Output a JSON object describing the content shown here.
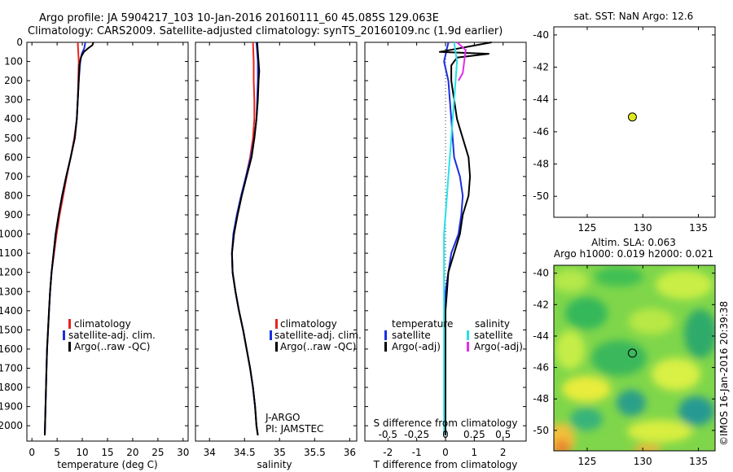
{
  "header": {
    "line1": "Argo profile: JA 5904217_103 10-Jan-2016 20160111_60 45.085S 129.063E",
    "line2": "Climatology: CARS2009. Satellite-adjusted climatology: synTS_20160109.nc (1.9d earlier)"
  },
  "credit": "©IMOS 16-Jan-2016 20:39:38",
  "colors": {
    "climatology": "#e8231e",
    "satellite": "#1a2fe0",
    "argo": "#000000",
    "sal_satellite": "#27e0e8",
    "sal_argo": "#e32ee8",
    "marker": "#e0e81e"
  },
  "chart_data": [
    {
      "id": "temperature",
      "type": "line",
      "xlabel": "temperature (deg C)",
      "ylabel": "",
      "xlim": [
        -1,
        31
      ],
      "ylim": [
        2080,
        0
      ],
      "xticks": [
        0,
        5,
        10,
        15,
        20,
        25,
        30
      ],
      "yticks": [
        0,
        100,
        200,
        300,
        400,
        500,
        600,
        700,
        800,
        900,
        1000,
        1100,
        1200,
        1300,
        1400,
        1500,
        1600,
        1700,
        1800,
        1900,
        2000
      ],
      "legend": [
        "climatology",
        "satellite-adj. clim.",
        "Argo(..raw -QC)"
      ],
      "series": [
        {
          "name": "climatology",
          "color": "#e8231e",
          "x": [
            9.1,
            9.2,
            9.3,
            9.2,
            9.1,
            8.9,
            8.4,
            7.7,
            6.9,
            6.2,
            5.5,
            4.9,
            4.4,
            3.9,
            3.6,
            3.4,
            3.2,
            3.0,
            2.9,
            2.8,
            2.7,
            2.6,
            2.55
          ],
          "y": [
            0,
            50,
            100,
            200,
            300,
            400,
            500,
            600,
            700,
            800,
            900,
            1000,
            1100,
            1200,
            1300,
            1400,
            1500,
            1600,
            1700,
            1800,
            1900,
            2000,
            2050
          ]
        },
        {
          "name": "satellite-adj. clim.",
          "color": "#1a2fe0",
          "x": [
            10.6,
            10.4,
            9.9,
            9.6,
            9.3,
            9.1,
            8.9,
            8.5,
            7.7,
            6.8,
            6.0,
            5.3,
            4.7,
            4.3,
            3.9,
            3.6,
            3.4,
            3.2,
            3.0,
            2.9,
            2.8,
            2.7,
            2.6,
            2.55
          ],
          "y": [
            0,
            30,
            60,
            100,
            200,
            300,
            400,
            500,
            600,
            700,
            800,
            900,
            1000,
            1100,
            1200,
            1300,
            1400,
            1500,
            1600,
            1700,
            1800,
            1900,
            2000,
            2050
          ]
        },
        {
          "name": "Argo(..raw -QC)",
          "color": "#000000",
          "x": [
            12.2,
            12.0,
            11.2,
            10.3,
            9.7,
            9.4,
            9.3,
            9.1,
            8.9,
            8.5,
            7.7,
            6.8,
            6.0,
            5.3,
            4.7,
            4.3,
            3.9,
            3.6,
            3.4,
            3.2,
            3.0,
            2.9,
            2.8,
            2.7,
            2.6,
            2.55
          ],
          "y": [
            0,
            15,
            30,
            50,
            80,
            120,
            200,
            300,
            400,
            500,
            600,
            700,
            800,
            900,
            1000,
            1100,
            1200,
            1300,
            1400,
            1500,
            1600,
            1700,
            1800,
            1900,
            2000,
            2050
          ]
        }
      ]
    },
    {
      "id": "salinity",
      "type": "line",
      "xlabel": "salinity",
      "ylabel": "",
      "xlim": [
        33.8,
        36.1
      ],
      "ylim": [
        2080,
        0
      ],
      "xticks": [
        34,
        34.5,
        35,
        35.5,
        36
      ],
      "legend": [
        "climatology",
        "satellite-adj. clim.",
        "Argo(..raw -QC)"
      ],
      "annotation": [
        "J-ARGO",
        "PI: JAMSTEC"
      ],
      "series": [
        {
          "name": "climatology",
          "color": "#e8231e",
          "x": [
            34.62,
            34.63,
            34.63,
            34.64,
            34.64,
            34.62,
            34.58,
            34.52,
            34.46,
            34.4,
            34.35,
            34.32,
            34.33,
            34.37,
            34.42,
            34.48,
            34.53,
            34.58,
            34.62,
            34.65,
            34.67,
            34.69
          ],
          "y": [
            0,
            100,
            200,
            300,
            400,
            500,
            600,
            700,
            800,
            900,
            1000,
            1100,
            1200,
            1300,
            1400,
            1500,
            1600,
            1700,
            1800,
            1900,
            2000,
            2050
          ]
        },
        {
          "name": "satellite-adj. clim.",
          "color": "#1a2fe0",
          "x": [
            34.67,
            34.68,
            34.69,
            34.69,
            34.68,
            34.67,
            34.64,
            34.59,
            34.52,
            34.45,
            34.39,
            34.34,
            34.32,
            34.33,
            34.37,
            34.42,
            34.48,
            34.53,
            34.58,
            34.62,
            34.65,
            34.67,
            34.69
          ],
          "y": [
            0,
            50,
            100,
            200,
            300,
            400,
            500,
            600,
            700,
            800,
            900,
            1000,
            1100,
            1200,
            1300,
            1400,
            1500,
            1600,
            1700,
            1800,
            1900,
            2000,
            2050
          ]
        },
        {
          "name": "Argo(..raw -QC)",
          "color": "#000000",
          "x": [
            34.68,
            34.69,
            34.71,
            34.7,
            34.69,
            34.67,
            34.64,
            34.6,
            34.53,
            34.46,
            34.4,
            34.35,
            34.32,
            34.33,
            34.37,
            34.42,
            34.48,
            34.53,
            34.58,
            34.62,
            34.65,
            34.67,
            34.69
          ],
          "y": [
            0,
            50,
            150,
            200,
            300,
            400,
            500,
            600,
            700,
            800,
            900,
            1000,
            1100,
            1200,
            1300,
            1400,
            1500,
            1600,
            1700,
            1800,
            1900,
            2000,
            2050
          ]
        }
      ]
    },
    {
      "id": "difference",
      "type": "line",
      "xlabel": "T difference from climatology",
      "xlabel_top": "S difference from climatology",
      "xlim": [
        -2.8,
        2.8
      ],
      "ylim": [
        2080,
        0
      ],
      "xticks": [
        -2,
        -1,
        0,
        1,
        2
      ],
      "xticklabels": [
        "-2",
        "-1",
        "0",
        "1",
        "2"
      ],
      "sticks": [
        -2,
        -1,
        0,
        1,
        2
      ],
      "sticklabels": [
        "-0.5",
        "-0.25",
        "0",
        "0.25",
        "0.5"
      ],
      "legend_t": [
        "temperature",
        "satellite",
        "Argo(-adj)"
      ],
      "legend_s": [
        "salinity",
        "satellite",
        "Argo(-adj)"
      ],
      "series": [
        {
          "name": "T satellite",
          "color": "#1a2fe0",
          "x": [
            0.1,
            -0.05,
            0.1,
            0.15,
            0.2,
            0.25,
            0.3,
            0.5,
            0.6,
            0.55,
            0.45,
            0.2,
            0.1,
            0.0,
            0.0,
            0.0,
            0.0,
            0.0,
            0.0,
            0.0,
            0.0
          ],
          "y": [
            0,
            100,
            200,
            300,
            400,
            500,
            600,
            700,
            800,
            900,
            1000,
            1100,
            1200,
            1300,
            1400,
            1500,
            1600,
            1700,
            1800,
            1900,
            2050
          ]
        },
        {
          "name": "T Argo(-adj)",
          "color": "#000000",
          "x": [
            1.6,
            -0.2,
            1.5,
            0.4,
            0.2,
            0.2,
            0.3,
            0.4,
            0.6,
            0.8,
            0.85,
            0.8,
            0.6,
            0.5,
            0.3,
            0.1,
            0.05,
            0.0,
            0.0,
            0.0,
            0.0
          ],
          "y": [
            0,
            50,
            60,
            80,
            120,
            200,
            300,
            400,
            500,
            600,
            700,
            800,
            900,
            1000,
            1100,
            1200,
            1300,
            1400,
            1600,
            1900,
            2050
          ]
        },
        {
          "name": "S satellite",
          "color": "#27e0e8",
          "x": [
            0.3,
            0.4,
            0.35,
            0.3,
            0.25,
            0.2,
            0.15,
            0.1,
            0.05,
            0.0,
            -0.05,
            -0.05,
            -0.05,
            -0.05,
            -0.05
          ],
          "y": [
            0,
            100,
            200,
            300,
            400,
            500,
            600,
            700,
            800,
            900,
            1000,
            1200,
            1500,
            1800,
            2050
          ]
        },
        {
          "name": "S Argo(-adj)",
          "color": "#e32ee8",
          "x": [
            0.4,
            0.7,
            0.6,
            0.45
          ],
          "y": [
            0,
            40,
            160,
            200
          ]
        }
      ]
    },
    {
      "id": "sst-map",
      "type": "scatter",
      "title": "sat. SST: NaN Argo: 12.6",
      "xlim": [
        122,
        136.5
      ],
      "ylim": [
        -51.3,
        -39.5
      ],
      "xticks": [
        125,
        130,
        135
      ],
      "yticks": [
        -40,
        -42,
        -44,
        -46,
        -48,
        -50
      ],
      "points": [
        {
          "x": 129.063,
          "y": -45.085
        }
      ]
    },
    {
      "id": "sla-map",
      "type": "heatmap",
      "title_line1": "Altim. SLA: 0.063",
      "title_line2": "Argo h1000: 0.019 h2000: 0.021",
      "xlim": [
        122,
        136.5
      ],
      "ylim": [
        -51.3,
        -39.5
      ],
      "xticks": [
        125,
        130,
        135
      ],
      "yticks": [
        -40,
        -42,
        -44,
        -46,
        -48,
        -50
      ],
      "points": [
        {
          "x": 129.063,
          "y": -45.085
        }
      ]
    }
  ]
}
